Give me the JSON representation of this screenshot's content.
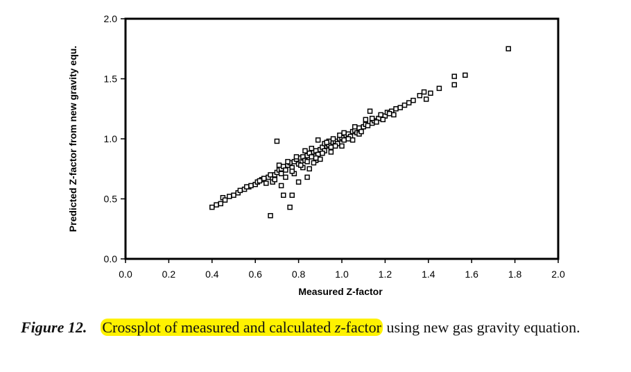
{
  "chart_data": {
    "type": "scatter",
    "title": "",
    "xlabel": "Measured Z-factor",
    "ylabel": "Predicted Z-factor from new gravity equ.",
    "xlim": [
      0.0,
      2.0
    ],
    "ylim": [
      0.0,
      2.0
    ],
    "x_ticks": [
      "0.0",
      "0.2",
      "0.4",
      "0.6",
      "0.8",
      "1.0",
      "1.2",
      "1.4",
      "1.6",
      "1.8",
      "2.0"
    ],
    "y_ticks": [
      "0.0",
      "0.5",
      "1.0",
      "1.5",
      "2.0"
    ],
    "grid": false,
    "legend": "none",
    "marker": "hollow-square",
    "series": [
      {
        "points": [
          [
            0.4,
            0.43
          ],
          [
            0.42,
            0.45
          ],
          [
            0.44,
            0.46
          ],
          [
            0.45,
            0.51
          ],
          [
            0.46,
            0.49
          ],
          [
            0.48,
            0.52
          ],
          [
            0.5,
            0.53
          ],
          [
            0.52,
            0.55
          ],
          [
            0.53,
            0.57
          ],
          [
            0.55,
            0.58
          ],
          [
            0.57,
            0.6
          ],
          [
            0.58,
            0.61
          ],
          [
            0.6,
            0.62
          ],
          [
            0.61,
            0.64
          ],
          [
            0.63,
            0.66
          ],
          [
            0.64,
            0.67
          ],
          [
            0.66,
            0.68
          ],
          [
            0.67,
            0.7
          ],
          [
            0.69,
            0.7
          ],
          [
            0.7,
            0.72
          ],
          [
            0.71,
            0.74
          ],
          [
            0.72,
            0.75
          ],
          [
            0.73,
            0.77
          ],
          [
            0.74,
            0.74
          ],
          [
            0.75,
            0.78
          ],
          [
            0.76,
            0.8
          ],
          [
            0.77,
            0.76
          ],
          [
            0.78,
            0.81
          ],
          [
            0.79,
            0.83
          ],
          [
            0.8,
            0.79
          ],
          [
            0.81,
            0.84
          ],
          [
            0.82,
            0.85
          ],
          [
            0.83,
            0.82
          ],
          [
            0.84,
            0.86
          ],
          [
            0.85,
            0.88
          ],
          [
            0.86,
            0.85
          ],
          [
            0.87,
            0.89
          ],
          [
            0.88,
            0.9
          ],
          [
            0.89,
            0.87
          ],
          [
            0.9,
            0.91
          ],
          [
            0.91,
            0.93
          ],
          [
            0.92,
            0.9
          ],
          [
            0.93,
            0.94
          ],
          [
            0.94,
            0.95
          ],
          [
            0.95,
            0.93
          ],
          [
            0.96,
            0.97
          ],
          [
            0.97,
            0.98
          ],
          [
            0.98,
            0.96
          ],
          [
            0.99,
            1.0
          ],
          [
            1.0,
            1.01
          ],
          [
            1.01,
            0.99
          ],
          [
            1.02,
            1.03
          ],
          [
            1.03,
            1.04
          ],
          [
            1.04,
            1.02
          ],
          [
            1.05,
            1.06
          ],
          [
            1.06,
            1.07
          ],
          [
            1.07,
            1.05
          ],
          [
            1.08,
            1.09
          ],
          [
            1.1,
            1.1
          ],
          [
            1.11,
            1.12
          ],
          [
            1.12,
            1.11
          ],
          [
            1.14,
            1.13
          ],
          [
            1.15,
            1.15
          ],
          [
            1.17,
            1.17
          ],
          [
            1.18,
            1.2
          ],
          [
            1.2,
            1.19
          ],
          [
            1.21,
            1.22
          ],
          [
            1.23,
            1.23
          ],
          [
            1.25,
            1.25
          ],
          [
            1.27,
            1.26
          ],
          [
            1.29,
            1.28
          ],
          [
            1.31,
            1.3
          ],
          [
            1.33,
            1.32
          ],
          [
            1.36,
            1.36
          ],
          [
            1.38,
            1.39
          ],
          [
            1.39,
            1.33
          ],
          [
            1.41,
            1.38
          ],
          [
            1.45,
            1.42
          ],
          [
            1.52,
            1.45
          ],
          [
            1.52,
            1.52
          ],
          [
            1.57,
            1.53
          ],
          [
            1.77,
            1.75
          ],
          [
            0.7,
            0.98
          ],
          [
            0.67,
            0.36
          ],
          [
            0.73,
            0.53
          ],
          [
            0.76,
            0.43
          ],
          [
            0.72,
            0.61
          ],
          [
            0.77,
            0.53
          ],
          [
            0.8,
            0.64
          ],
          [
            0.84,
            0.68
          ],
          [
            0.85,
            0.75
          ],
          [
            0.88,
            0.82
          ],
          [
            0.9,
            0.83
          ],
          [
            0.89,
            0.99
          ],
          [
            1.13,
            1.23
          ],
          [
            0.95,
            0.89
          ],
          [
            1.0,
            0.94
          ],
          [
            1.05,
            0.99
          ],
          [
            0.78,
            0.71
          ],
          [
            0.74,
            0.68
          ],
          [
            0.82,
            0.76
          ],
          [
            0.87,
            0.8
          ],
          [
            1.08,
            1.04
          ],
          [
            0.92,
            0.96
          ],
          [
            0.96,
            1.0
          ],
          [
            0.83,
            0.9
          ],
          [
            0.79,
            0.85
          ],
          [
            0.75,
            0.81
          ],
          [
            0.71,
            0.78
          ],
          [
            1.11,
            1.16
          ],
          [
            1.16,
            1.14
          ],
          [
            1.19,
            1.16
          ],
          [
            1.22,
            1.21
          ],
          [
            0.68,
            0.64
          ],
          [
            0.62,
            0.65
          ],
          [
            0.56,
            0.6
          ],
          [
            0.65,
            0.63
          ],
          [
            0.86,
            0.92
          ],
          [
            0.91,
            0.88
          ],
          [
            0.97,
            0.94
          ],
          [
            1.03,
            1.0
          ],
          [
            0.94,
            0.98
          ],
          [
            0.81,
            0.78
          ],
          [
            0.77,
            0.73
          ],
          [
            1.09,
            1.06
          ],
          [
            1.06,
            1.1
          ],
          [
            0.99,
            1.03
          ],
          [
            1.01,
            1.05
          ],
          [
            0.88,
            0.84
          ],
          [
            0.93,
            0.97
          ],
          [
            0.72,
            0.71
          ],
          [
            0.69,
            0.66
          ],
          [
            0.84,
            0.81
          ],
          [
            1.14,
            1.17
          ],
          [
            1.24,
            1.2
          ]
        ]
      }
    ]
  },
  "caption": {
    "figure_number": "Figure 12.",
    "highlighted_text": "Crossplot of measured and calculated ",
    "z": "z",
    "highlighted_rest": "-factor",
    "rest": " using new gas gravity equation.",
    "highlight_color": "#fff200"
  }
}
